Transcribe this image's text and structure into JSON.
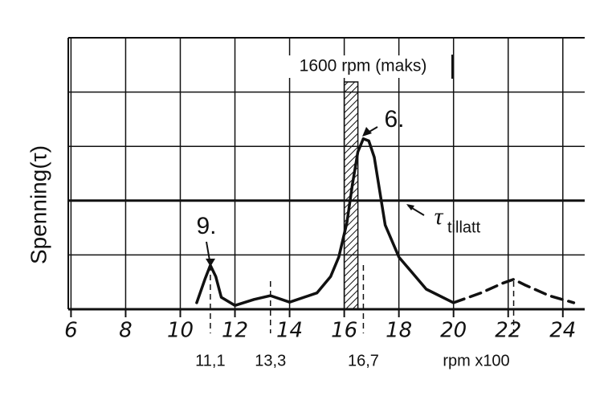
{
  "chart_data": {
    "type": "line",
    "y_label": "Spenning(τ)",
    "x_label": "rpm x100",
    "xlim": [
      5.9,
      24.8
    ],
    "xticks": [
      6,
      8,
      10,
      12,
      14,
      16,
      18,
      20,
      22,
      24
    ],
    "ylim": [
      0,
      5
    ],
    "yticks": [
      0,
      1,
      2,
      3,
      4,
      5
    ],
    "grid": true,
    "series": [
      {
        "color": "#111111",
        "dash": false,
        "x": [
          10.6,
          10.9,
          11.1,
          11.3,
          11.5,
          12,
          12.7,
          13.3,
          14,
          15,
          15.5,
          15.8,
          16.1,
          16.3,
          16.5,
          16.7,
          16.9,
          17.1,
          17.5,
          18,
          19,
          20
        ],
        "values": [
          0.12,
          0.55,
          0.81,
          0.6,
          0.22,
          0.07,
          0.18,
          0.25,
          0.13,
          0.3,
          0.6,
          0.96,
          1.6,
          2.3,
          2.9,
          3.14,
          3.1,
          2.8,
          1.55,
          0.96,
          0.37,
          0.12
        ]
      },
      {
        "color": "#111111",
        "dash": true,
        "x": [
          20,
          21,
          21.8,
          22.2,
          22.6,
          23.5,
          24.4
        ],
        "values": [
          0.12,
          0.3,
          0.48,
          0.55,
          0.45,
          0.25,
          0.12
        ]
      }
    ],
    "max_band": {
      "range": [
        16,
        16.5
      ],
      "label": "1600 rpm (maks)"
    },
    "limit": {
      "value": 2,
      "symbol": "τ",
      "label": "tillatt"
    },
    "markers": [
      {
        "x": 11.1,
        "label": "11,1"
      },
      {
        "x": 13.3,
        "label": "13,3"
      },
      {
        "x": 16.7,
        "label": "16,7"
      },
      {
        "x": 22.2,
        "label": null
      }
    ],
    "annotations": [
      "9.",
      "6."
    ]
  }
}
